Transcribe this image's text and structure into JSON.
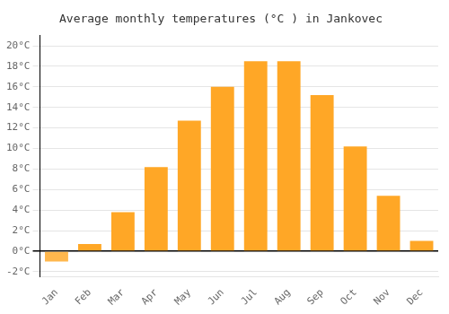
{
  "chart_data": {
    "type": "bar",
    "title": "Average monthly temperatures (°C ) in Jankovec",
    "categories": [
      "Jan",
      "Feb",
      "Mar",
      "Apr",
      "May",
      "Jun",
      "Jul",
      "Aug",
      "Sep",
      "Oct",
      "Nov",
      "Dec"
    ],
    "values": [
      -1.0,
      0.7,
      3.8,
      8.2,
      12.7,
      16.0,
      18.5,
      18.5,
      15.2,
      10.2,
      5.4,
      1.0
    ],
    "colors": [
      "#FFB74D",
      "#FFA726",
      "#FFA726",
      "#FFA726",
      "#FFA726",
      "#FFA726",
      "#FFA726",
      "#FFA726",
      "#FFA726",
      "#FFA726",
      "#FFA726",
      "#FFA726"
    ],
    "ylim": [
      -2.5,
      21.0
    ],
    "yticks": [
      {
        "value": -2,
        "label": "-2°C"
      },
      {
        "value": 0,
        "label": "0°C"
      },
      {
        "value": 2,
        "label": "2°C"
      },
      {
        "value": 4,
        "label": "4°C"
      },
      {
        "value": 6,
        "label": "6°C"
      },
      {
        "value": 8,
        "label": "8°C"
      },
      {
        "value": 10,
        "label": "10°C"
      },
      {
        "value": 12,
        "label": "12°C"
      },
      {
        "value": 14,
        "label": "14°C"
      },
      {
        "value": 16,
        "label": "16°C"
      },
      {
        "value": 18,
        "label": "18°C"
      },
      {
        "value": 20,
        "label": "20°C"
      }
    ],
    "grid": true
  }
}
